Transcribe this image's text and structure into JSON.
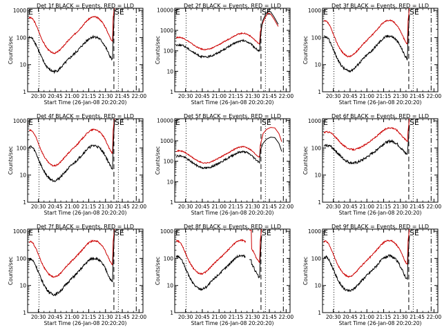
{
  "chart_data": [
    {
      "type": "line",
      "title": "Det 1f BLACK = Events, RED = LLD",
      "ylabel": "Counts/sec",
      "xlabel": "Start Time (26-Jan-08 20:20:20)",
      "x_ticks": [
        "20:30",
        "20:45",
        "21:00",
        "21:15",
        "21:30",
        "21:45",
        "22:00"
      ],
      "y_ticks": [
        "1",
        "10",
        "100",
        "1000"
      ],
      "ylim": [
        1,
        1200
      ],
      "yscale": "log",
      "markers": [
        "E",
        "SE"
      ],
      "series": [
        {
          "color": "#cc0000",
          "shape": "A",
          "base": 400,
          "amp": 1.3
        },
        {
          "color": "#000000",
          "shape": "A",
          "base": 75,
          "amp": 1.25
        }
      ],
      "flare": "rise"
    },
    {
      "type": "line",
      "title": "Det 2f BLACK = Events, RED = LLD",
      "ylabel": "Counts/sec",
      "xlabel": "Start Time (26-Jan-08 20:20:20)",
      "x_ticks": [
        "20:30",
        "20:45",
        "21:00",
        "21:15",
        "21:30",
        "21:45",
        "22:00"
      ],
      "y_ticks": [
        "1",
        "10",
        "100",
        "1000",
        "10000"
      ],
      "ylim": [
        1,
        12000
      ],
      "yscale": "log",
      "markers": [
        "E",
        "SE"
      ],
      "series": [
        {
          "color": "#cc0000",
          "shape": "B",
          "base": 420,
          "amp": 1.0
        },
        {
          "color": "#000000",
          "shape": "B",
          "base": 180,
          "amp": 1.0
        }
      ],
      "flare": "big"
    },
    {
      "type": "line",
      "title": "Det 3f BLACK = Events, RED = LLD",
      "ylabel": "Counts/sec",
      "xlabel": "Start Time (26-Jan-08 20:20:20)",
      "x_ticks": [
        "20:30",
        "20:45",
        "21:00",
        "21:15",
        "21:30",
        "21:45",
        "22:00"
      ],
      "y_ticks": [
        "1",
        "10",
        "100",
        "1000"
      ],
      "ylim": [
        1,
        1200
      ],
      "yscale": "log",
      "markers": [
        "E",
        "SE"
      ],
      "series": [
        {
          "color": "#cc0000",
          "shape": "A",
          "base": 300,
          "amp": 1.3
        },
        {
          "color": "#000000",
          "shape": "A",
          "base": 80,
          "amp": 1.25
        }
      ],
      "flare": "rise"
    },
    {
      "type": "line",
      "title": "Det 4f BLACK = Events, RED = LLD",
      "ylabel": "Counts/sec",
      "xlabel": "Start Time (26-Jan-08 20:20:20)",
      "x_ticks": [
        "20:30",
        "20:45",
        "21:00",
        "21:15",
        "21:30",
        "21:45",
        "22:00"
      ],
      "y_ticks": [
        "1",
        "10",
        "100",
        "1000"
      ],
      "ylim": [
        1,
        1200
      ],
      "yscale": "log",
      "markers": [
        "E",
        "SE"
      ],
      "series": [
        {
          "color": "#cc0000",
          "shape": "A",
          "base": 330,
          "amp": 1.3
        },
        {
          "color": "#000000",
          "shape": "A",
          "base": 85,
          "amp": 1.25
        }
      ],
      "flare": "rise"
    },
    {
      "type": "line",
      "title": "Det 5f BLACK = Events, RED = LLD",
      "ylabel": "Counts/sec",
      "xlabel": "Start Time (26-Jan-08 20:20:20)",
      "x_ticks": [
        "20:30",
        "20:45",
        "21:00",
        "21:15",
        "21:30",
        "21:45",
        "22:00"
      ],
      "y_ticks": [
        "1",
        "10",
        "100",
        "1000",
        "10000"
      ],
      "ylim": [
        1,
        12000
      ],
      "yscale": "log",
      "markers": [
        "E",
        "SE"
      ],
      "series": [
        {
          "color": "#cc0000",
          "shape": "B",
          "base": 300,
          "amp": 1.0
        },
        {
          "color": "#000000",
          "shape": "B",
          "base": 170,
          "amp": 1.0
        }
      ],
      "flare": "big5"
    },
    {
      "type": "line",
      "title": "Det 6f BLACK = Events, RED = LLD",
      "ylabel": "Counts/sec",
      "xlabel": "Start Time (26-Jan-08 20:20:20)",
      "x_ticks": [
        "20:30",
        "20:45",
        "21:00",
        "21:15",
        "21:30",
        "21:45",
        "22:00"
      ],
      "y_ticks": [
        "1",
        "10",
        "100",
        "1000"
      ],
      "ylim": [
        1,
        1200
      ],
      "yscale": "log",
      "markers": [
        "E",
        "SE"
      ],
      "series": [
        {
          "color": "#cc0000",
          "shape": "C",
          "base": 300,
          "amp": 1.15
        },
        {
          "color": "#000000",
          "shape": "C",
          "base": 95,
          "amp": 1.15
        }
      ],
      "flare": "rise"
    },
    {
      "type": "line",
      "title": "Det 7f BLACK = Events, RED = LLD",
      "ylabel": "Counts/sec",
      "xlabel": "Start Time (26-Jan-08 20:20:20)",
      "x_ticks": [
        "20:30",
        "20:45",
        "21:00",
        "21:15",
        "21:30",
        "21:45",
        "22:00"
      ],
      "y_ticks": [
        "1",
        "10",
        "100",
        "1000"
      ],
      "ylim": [
        1,
        1200
      ],
      "yscale": "log",
      "markers": [
        "E",
        "SE"
      ],
      "series": [
        {
          "color": "#cc0000",
          "shape": "A",
          "base": 310,
          "amp": 1.3
        },
        {
          "color": "#000000",
          "shape": "A",
          "base": 70,
          "amp": 1.3
        }
      ],
      "flare": "rise"
    },
    {
      "type": "line",
      "title": "Det 8f BLACK = Events, RED = LLD",
      "ylabel": "Counts/sec",
      "xlabel": "Start Time (26-Jan-08 20:20:20)",
      "x_ticks": [
        "20:30",
        "20:45",
        "21:00",
        "21:15",
        "21:30",
        "21:45",
        "22:00"
      ],
      "y_ticks": [
        "1",
        "10",
        "100",
        "1000"
      ],
      "ylim": [
        1,
        1200
      ],
      "yscale": "log",
      "markers": [
        "E",
        "SE"
      ],
      "series": [
        {
          "color": "#cc0000",
          "shape": "A",
          "base": 330,
          "amp": 1.2
        },
        {
          "color": "#000000",
          "shape": "A",
          "base": 90,
          "amp": 1.2
        }
      ],
      "flare": "gap"
    },
    {
      "type": "line",
      "title": "Det 9f BLACK = Events, RED = LLD",
      "ylabel": "Counts/sec",
      "xlabel": "Start Time (26-Jan-08 20:20:20)",
      "x_ticks": [
        "20:30",
        "20:45",
        "21:00",
        "21:15",
        "21:30",
        "21:45",
        "22:00"
      ],
      "y_ticks": [
        "1",
        "10",
        "100",
        "1000"
      ],
      "ylim": [
        1,
        1200
      ],
      "yscale": "log",
      "markers": [
        "E",
        "SE"
      ],
      "series": [
        {
          "color": "#cc0000",
          "shape": "A",
          "base": 320,
          "amp": 1.3
        },
        {
          "color": "#000000",
          "shape": "A",
          "base": 85,
          "amp": 1.25
        }
      ],
      "flare": "rise"
    }
  ]
}
